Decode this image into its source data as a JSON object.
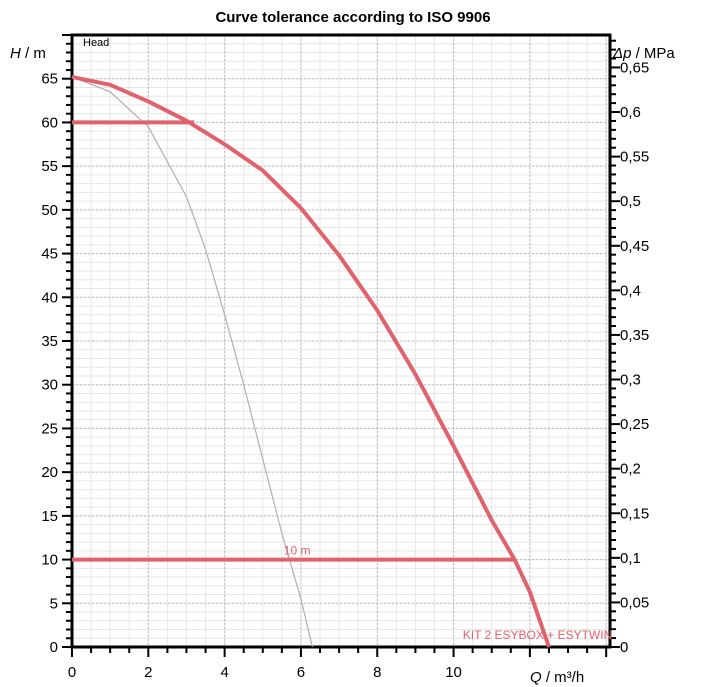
{
  "chart_data": {
    "type": "line",
    "title": "Curve tolerance according to ISO 9906",
    "inner_label": "Head",
    "x_label_var": "Q",
    "x_label_unit": " / m³/h",
    "y_label_var": "H",
    "y_label_unit": " / m",
    "y2_label_var": "Δp",
    "y2_label_unit": " / MPa",
    "xlim": [
      0,
      14.1
    ],
    "ylim": [
      0,
      70
    ],
    "y2lim": [
      0,
      0.6864
    ],
    "x_ticks": [
      0,
      2,
      4,
      6,
      8,
      10
    ],
    "x_tick_labels": [
      "0",
      "2",
      "4",
      "6",
      "8",
      "10"
    ],
    "y_ticks": [
      0,
      5,
      10,
      15,
      20,
      25,
      30,
      35,
      40,
      45,
      50,
      55,
      60,
      65
    ],
    "y_tick_labels": [
      "0",
      "5",
      "10",
      "15",
      "20",
      "25",
      "30",
      "35",
      "40",
      "45",
      "50",
      "55",
      "60",
      "65"
    ],
    "y2_ticks": [
      0,
      0.05,
      0.1,
      0.15,
      0.2,
      0.25,
      0.3,
      0.35,
      0.4,
      0.45,
      0.5,
      0.55,
      0.6,
      0.65
    ],
    "y2_tick_labels": [
      "0",
      "0,05",
      "0,1",
      "0,15",
      "0,2",
      "0,25",
      "0,3",
      "0,35",
      "0,4",
      "0,45",
      "0,5",
      "0,55",
      "0,6",
      "0,65"
    ],
    "grid": true,
    "colors": {
      "main": "#e0626c",
      "secondary": "#b0b0b0"
    },
    "series": [
      {
        "name": "KIT 2 ESYBOX + ESYTWIN",
        "color": "#e0626c",
        "x": [
          0,
          1,
          2,
          3,
          4,
          5,
          6,
          7,
          8,
          9,
          10,
          11,
          11.6,
          12,
          12.5
        ],
        "y": [
          65.2,
          64.3,
          62.4,
          60.2,
          57.5,
          54.5,
          50.2,
          44.8,
          38.5,
          31.2,
          23.0,
          14.5,
          10,
          6.3,
          0
        ]
      },
      {
        "name": "",
        "color": "#b0b0b0",
        "x": [
          0,
          1,
          2,
          3,
          3.5,
          4,
          4.5,
          5,
          5.5,
          6,
          6.3
        ],
        "y": [
          65.2,
          63.5,
          59.5,
          51.5,
          45.5,
          38.0,
          30.0,
          21.5,
          13.0,
          5.5,
          0
        ]
      }
    ],
    "hlines": [
      {
        "y": 60,
        "x_start": 0,
        "x_end": 3.2
      },
      {
        "y": 10,
        "x_start": 0,
        "x_end": 11.6
      }
    ],
    "annotations": [
      {
        "text": "10 m",
        "x": 5.9,
        "y": 10.6
      },
      {
        "text": "KIT 2 ESYBOX + ESYTWIN",
        "x": 12.2,
        "y": 0.9
      }
    ]
  }
}
